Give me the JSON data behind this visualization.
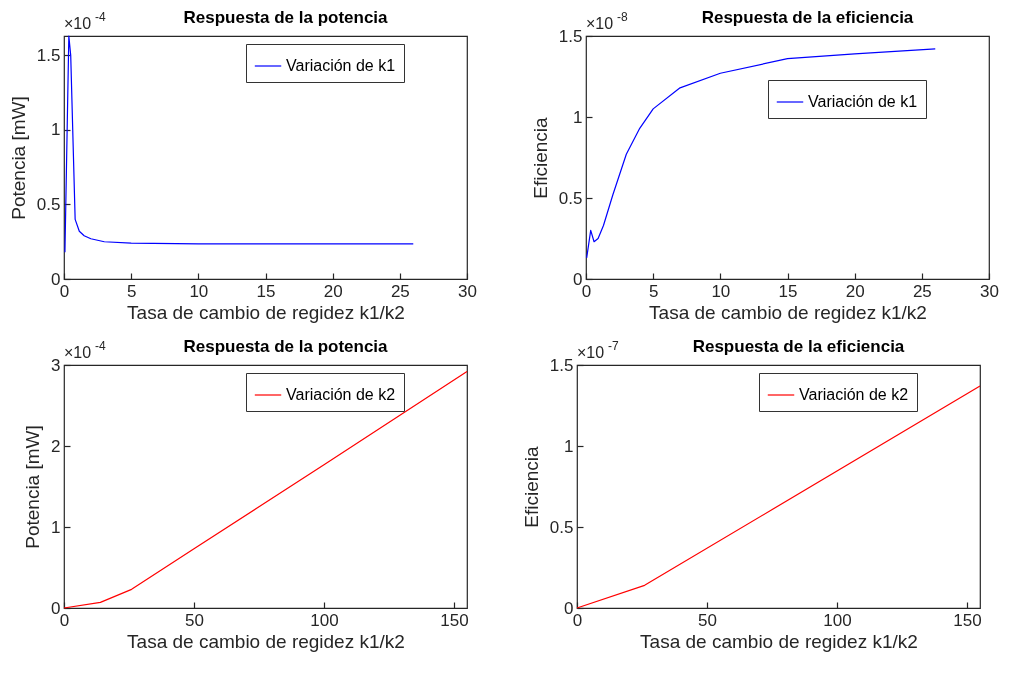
{
  "chart_data": [
    {
      "type": "line",
      "title": "Respuesta de la potencia",
      "xlabel": "Tasa de cambio de regidez k1/k2",
      "ylabel": "Potencia [mW]",
      "annotations": [
        "×10$^{-4}$"
      ],
      "xlim": [
        0,
        30
      ],
      "xticks": [
        0,
        5,
        10,
        15,
        20,
        25,
        30
      ],
      "ylim": [
        0,
        1.63
      ],
      "yticks": [
        0,
        0.5,
        1,
        1.5
      ],
      "grid": false,
      "legend": "top right",
      "line_style": "solid",
      "series": [
        {
          "name": "Variación de k1",
          "color": "#0000ff",
          "x": [
            0.07,
            0.36,
            0.5,
            0.83,
            1.14,
            1.5,
            2,
            3,
            5,
            10,
            26
          ],
          "values": [
            0.18,
            1.63,
            1.5,
            0.4,
            0.32,
            0.29,
            0.27,
            0.25,
            0.24,
            0.235,
            0.235
          ]
        }
      ]
    },
    {
      "type": "line",
      "title": "Respuesta de la eficiencia",
      "xlabel": "Tasa de cambio de regidez k1/k2",
      "ylabel": "Eficiencia",
      "annotations": [
        "×10$^{-8}$"
      ],
      "xlim": [
        0,
        30
      ],
      "xticks": [
        0,
        5,
        10,
        15,
        20,
        25,
        30
      ],
      "ylim": [
        0,
        1.5
      ],
      "yticks": [
        0,
        0.5,
        1,
        1.5
      ],
      "grid": false,
      "legend": "right",
      "line_style": "solid",
      "series": [
        {
          "name": "Variación de k1",
          "color": "#0000ff",
          "x": [
            0.05,
            0.35,
            0.6,
            0.9,
            1.3,
            2,
            3,
            4,
            5,
            7,
            10,
            15,
            20,
            26
          ],
          "values": [
            0.13,
            0.3,
            0.23,
            0.25,
            0.33,
            0.52,
            0.77,
            0.93,
            1.05,
            1.18,
            1.27,
            1.36,
            1.39,
            1.42
          ]
        }
      ]
    },
    {
      "type": "line",
      "title": "Respuesta de la potencia",
      "xlabel": "Tasa de cambio de regidez k1/k2",
      "ylabel": "Potencia [mW]",
      "annotations": [
        "×10$^{-4}$"
      ],
      "xlim": [
        0,
        155
      ],
      "xticks": [
        0,
        50,
        100,
        150
      ],
      "ylim": [
        0,
        3
      ],
      "yticks": [
        0,
        1,
        2,
        3
      ],
      "grid": false,
      "legend": "top right",
      "line_style": "solid",
      "series": [
        {
          "name": "Variación de k2",
          "color": "#ff0000",
          "x": [
            0,
            14,
            26,
            50,
            100,
            155
          ],
          "values": [
            0,
            0.07,
            0.23,
            0.73,
            1.77,
            2.92
          ]
        }
      ]
    },
    {
      "type": "line",
      "title": "Respuesta de la eficiencia",
      "xlabel": "Tasa de cambio de regidez k1/k2",
      "ylabel": "Eficiencia",
      "annotations": [
        "×10$^{-7}$"
      ],
      "xlim": [
        0,
        155
      ],
      "xticks": [
        0,
        50,
        100,
        150
      ],
      "ylim": [
        0,
        1.5
      ],
      "yticks": [
        0,
        0.5,
        1,
        1.5
      ],
      "grid": false,
      "legend": "top right",
      "line_style": "solid",
      "series": [
        {
          "name": "Variación de k2",
          "color": "#ff0000",
          "x": [
            0,
            26,
            155
          ],
          "values": [
            0,
            0.14,
            1.37
          ]
        }
      ]
    }
  ]
}
